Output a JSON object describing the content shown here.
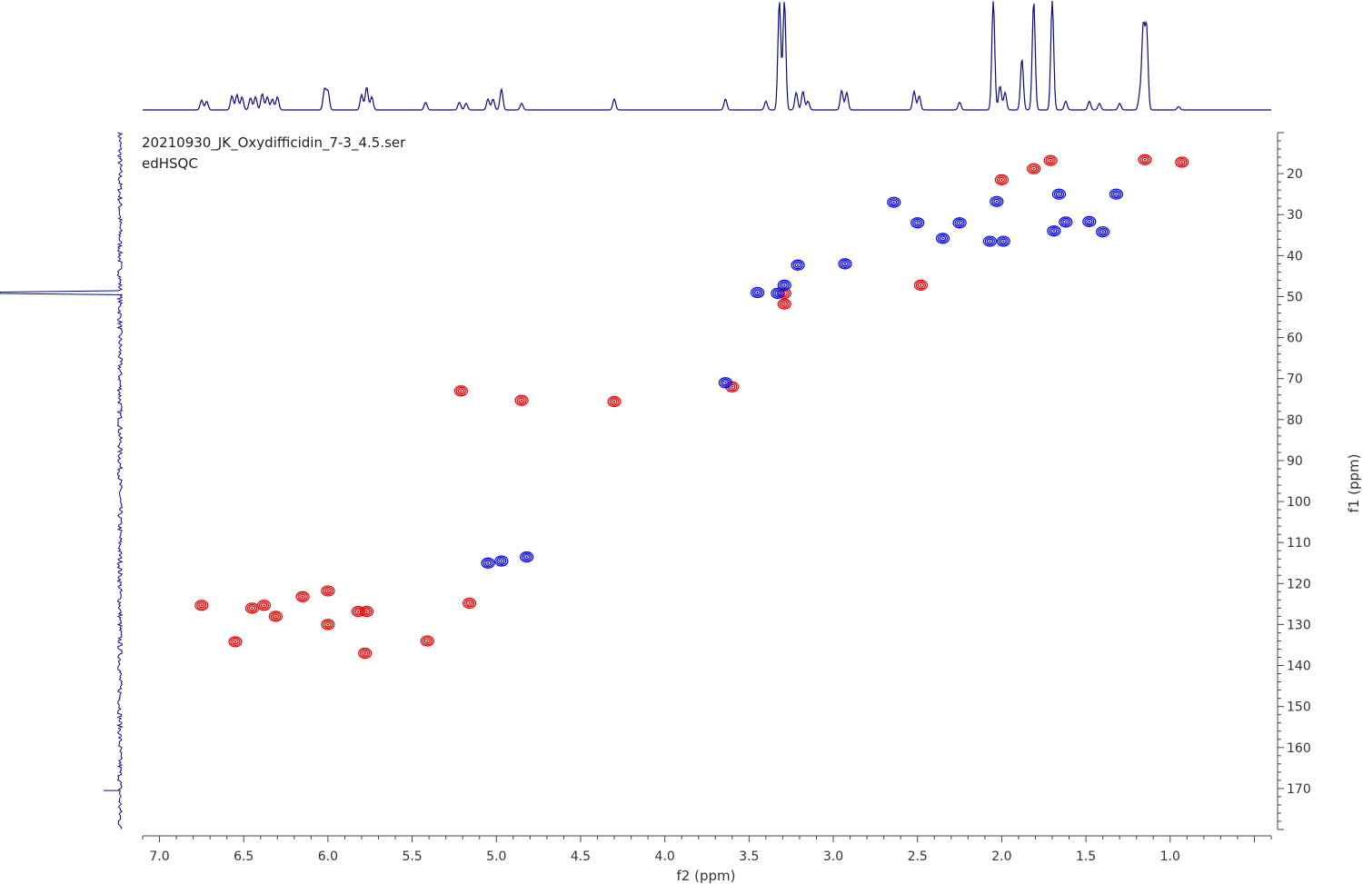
{
  "chart_data": {
    "type": "scatter",
    "subtype": "2D NMR contour plot (edited HSQC)",
    "title": "",
    "file_label": "20210930_JK_Oxydifficidin_7-3_4.5.ser",
    "experiment_label": "edHSQC",
    "xlabel": "f2 (ppm)",
    "ylabel": "f1 (ppm)",
    "xlim": [
      7.1,
      0.4
    ],
    "ylim": [
      10,
      180
    ],
    "x_axis_reversed": true,
    "y_axis_increases_downward": true,
    "x_ticks": [
      "7.0",
      "6.5",
      "6.0",
      "5.5",
      "5.0",
      "4.5",
      "4.0",
      "3.5",
      "3.0",
      "2.5",
      "2.0",
      "1.5",
      "1.0"
    ],
    "y_ticks": [
      "20",
      "30",
      "40",
      "50",
      "60",
      "70",
      "80",
      "90",
      "100",
      "110",
      "120",
      "130",
      "140",
      "150",
      "160",
      "170"
    ],
    "grid": false,
    "top_projection": "1H spectrum (f2)",
    "left_projection": "13C projection (f1)",
    "colors": {
      "positive_phase": "#e00000",
      "negative_phase": "#0000e6",
      "projection": "#0a0a8a"
    },
    "series": [
      {
        "phase": "positive",
        "color": "#e00000",
        "points": [
          {
            "x": 6.75,
            "y": 125.3
          },
          {
            "x": 6.45,
            "y": 126.0
          },
          {
            "x": 6.38,
            "y": 125.3
          },
          {
            "x": 6.31,
            "y": 128.0
          },
          {
            "x": 6.55,
            "y": 134.2
          },
          {
            "x": 6.15,
            "y": 123.2
          },
          {
            "x": 6.0,
            "y": 121.8
          },
          {
            "x": 6.0,
            "y": 130.0
          },
          {
            "x": 5.82,
            "y": 126.8
          },
          {
            "x": 5.77,
            "y": 126.8
          },
          {
            "x": 5.78,
            "y": 137.0
          },
          {
            "x": 5.41,
            "y": 134.0
          },
          {
            "x": 5.16,
            "y": 124.8
          },
          {
            "x": 5.21,
            "y": 73.0
          },
          {
            "x": 4.85,
            "y": 75.3
          },
          {
            "x": 4.3,
            "y": 75.6
          },
          {
            "x": 3.6,
            "y": 72.0
          },
          {
            "x": 3.29,
            "y": 49.2
          },
          {
            "x": 3.29,
            "y": 51.8
          },
          {
            "x": 2.48,
            "y": 47.2
          },
          {
            "x": 2.0,
            "y": 21.5
          },
          {
            "x": 1.81,
            "y": 18.8
          },
          {
            "x": 1.71,
            "y": 16.8
          },
          {
            "x": 1.15,
            "y": 16.6
          },
          {
            "x": 0.93,
            "y": 17.2
          }
        ]
      },
      {
        "phase": "negative",
        "color": "#0000e6",
        "points": [
          {
            "x": 5.05,
            "y": 115.0
          },
          {
            "x": 4.97,
            "y": 114.5
          },
          {
            "x": 4.82,
            "y": 113.5
          },
          {
            "x": 3.64,
            "y": 71.0
          },
          {
            "x": 3.45,
            "y": 49.0
          },
          {
            "x": 3.33,
            "y": 49.2
          },
          {
            "x": 3.29,
            "y": 47.2
          },
          {
            "x": 3.21,
            "y": 42.3
          },
          {
            "x": 2.93,
            "y": 42.0
          },
          {
            "x": 2.64,
            "y": 27.0
          },
          {
            "x": 2.5,
            "y": 32.0
          },
          {
            "x": 2.35,
            "y": 35.8
          },
          {
            "x": 2.25,
            "y": 32.0
          },
          {
            "x": 2.03,
            "y": 26.8
          },
          {
            "x": 2.07,
            "y": 36.5
          },
          {
            "x": 1.99,
            "y": 36.5
          },
          {
            "x": 1.69,
            "y": 34.0
          },
          {
            "x": 1.66,
            "y": 25.0
          },
          {
            "x": 1.62,
            "y": 31.8
          },
          {
            "x": 1.48,
            "y": 31.7
          },
          {
            "x": 1.4,
            "y": 34.2
          },
          {
            "x": 1.32,
            "y": 25.0
          }
        ]
      }
    ],
    "proton_projection_peaks": [
      {
        "x": 6.75,
        "h": 0.09
      },
      {
        "x": 6.72,
        "h": 0.08
      },
      {
        "x": 6.57,
        "h": 0.13
      },
      {
        "x": 6.54,
        "h": 0.14
      },
      {
        "x": 6.51,
        "h": 0.12
      },
      {
        "x": 6.46,
        "h": 0.11
      },
      {
        "x": 6.43,
        "h": 0.12
      },
      {
        "x": 6.39,
        "h": 0.15
      },
      {
        "x": 6.36,
        "h": 0.12
      },
      {
        "x": 6.33,
        "h": 0.1
      },
      {
        "x": 6.3,
        "h": 0.12
      },
      {
        "x": 6.02,
        "h": 0.19
      },
      {
        "x": 6.0,
        "h": 0.17
      },
      {
        "x": 5.8,
        "h": 0.14
      },
      {
        "x": 5.77,
        "h": 0.21
      },
      {
        "x": 5.74,
        "h": 0.12
      },
      {
        "x": 5.42,
        "h": 0.07
      },
      {
        "x": 5.22,
        "h": 0.07
      },
      {
        "x": 5.18,
        "h": 0.06
      },
      {
        "x": 5.05,
        "h": 0.1
      },
      {
        "x": 5.02,
        "h": 0.1
      },
      {
        "x": 4.97,
        "h": 0.19
      },
      {
        "x": 4.85,
        "h": 0.06
      },
      {
        "x": 4.3,
        "h": 0.1
      },
      {
        "x": 3.64,
        "h": 0.1
      },
      {
        "x": 3.4,
        "h": 0.08
      },
      {
        "x": 3.32,
        "h": 1.0
      },
      {
        "x": 3.29,
        "h": 1.0
      },
      {
        "x": 3.22,
        "h": 0.16
      },
      {
        "x": 3.18,
        "h": 0.17
      },
      {
        "x": 3.15,
        "h": 0.08
      },
      {
        "x": 2.95,
        "h": 0.18
      },
      {
        "x": 2.92,
        "h": 0.16
      },
      {
        "x": 2.52,
        "h": 0.17
      },
      {
        "x": 2.49,
        "h": 0.13
      },
      {
        "x": 2.25,
        "h": 0.07
      },
      {
        "x": 2.05,
        "h": 1.0
      },
      {
        "x": 2.01,
        "h": 0.22
      },
      {
        "x": 1.98,
        "h": 0.16
      },
      {
        "x": 1.88,
        "h": 0.47
      },
      {
        "x": 1.81,
        "h": 1.0
      },
      {
        "x": 1.7,
        "h": 1.0
      },
      {
        "x": 1.62,
        "h": 0.08
      },
      {
        "x": 1.48,
        "h": 0.08
      },
      {
        "x": 1.42,
        "h": 0.06
      },
      {
        "x": 1.3,
        "h": 0.06
      },
      {
        "x": 1.18,
        "h": 0.14
      },
      {
        "x": 1.16,
        "h": 0.75
      },
      {
        "x": 1.14,
        "h": 0.75
      },
      {
        "x": 0.95,
        "h": 0.03
      }
    ]
  }
}
